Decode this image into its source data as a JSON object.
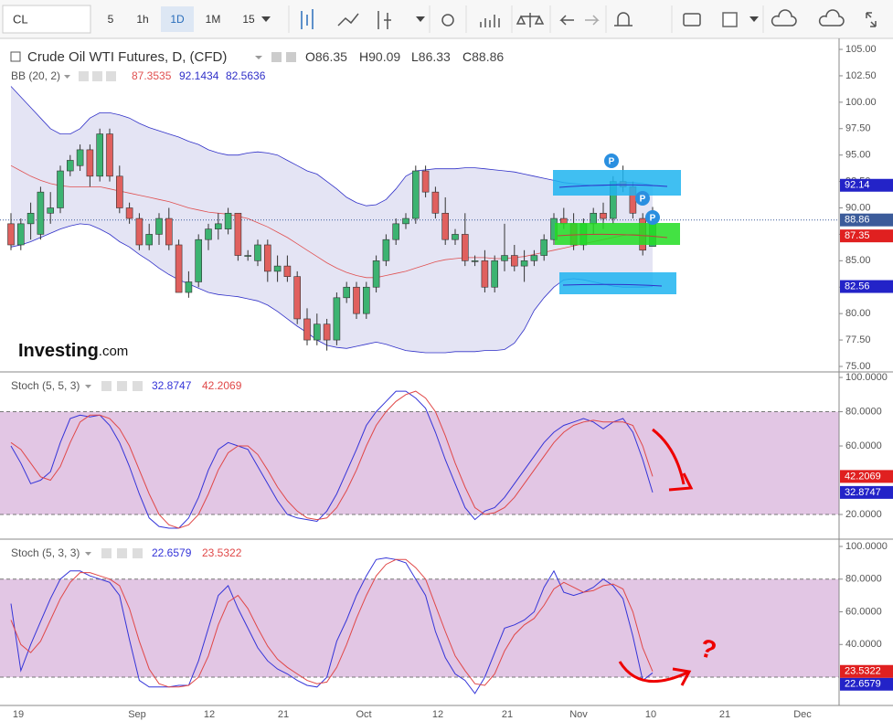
{
  "toolbar": {
    "symbol": "CL",
    "intervals": [
      "5",
      "1h",
      "1D",
      "1M",
      "15"
    ]
  },
  "chart": {
    "title": "Crude Oil WTI Futures, D, (CFD)",
    "ohlc": [
      {
        "label": "O",
        "value": 86.35
      },
      {
        "label": "H",
        "value": 90.09
      },
      {
        "label": "L",
        "value": 86.33
      },
      {
        "label": "C",
        "value": 88.86
      }
    ],
    "up_color": "#3cb371",
    "down_color": "#e0605e",
    "candles": [
      [
        88.5,
        89.5,
        86,
        86.5
      ],
      [
        86.5,
        89,
        86,
        88.5
      ],
      [
        88.5,
        90.5,
        87,
        89.5
      ],
      [
        87.5,
        92,
        87,
        91.5
      ],
      [
        89.5,
        91.5,
        88.5,
        90
      ],
      [
        90,
        94,
        89.5,
        93.5
      ],
      [
        93.5,
        95,
        93,
        94.5
      ],
      [
        94,
        96,
        93.5,
        95.5
      ],
      [
        95.5,
        96,
        92,
        93
      ],
      [
        93,
        97.5,
        92.5,
        97
      ],
      [
        97,
        97.5,
        92.5,
        93
      ],
      [
        93,
        94,
        89.5,
        90
      ],
      [
        90,
        90.5,
        88.5,
        89
      ],
      [
        89,
        89.5,
        86,
        86.5
      ],
      [
        86.5,
        88.5,
        86,
        87.5
      ],
      [
        87.5,
        89.5,
        86.5,
        89
      ],
      [
        89,
        90,
        86,
        86.5
      ],
      [
        86.5,
        87,
        82,
        82
      ],
      [
        82,
        84,
        81.5,
        83
      ],
      [
        83,
        87.5,
        82.5,
        87
      ],
      [
        87,
        88.5,
        86,
        88
      ],
      [
        88,
        89.5,
        87,
        88.5
      ],
      [
        88,
        90,
        87.5,
        89.5
      ],
      [
        89.5,
        89.5,
        85,
        85.5
      ],
      [
        85.5,
        86,
        85,
        85.5
      ],
      [
        85,
        87,
        84.5,
        86.5
      ],
      [
        86.5,
        87,
        83,
        84
      ],
      [
        84,
        85.5,
        83,
        84.5
      ],
      [
        84.5,
        85.5,
        83,
        83.5
      ],
      [
        83.5,
        84,
        79,
        79.5
      ],
      [
        79.5,
        80.5,
        77,
        77.5
      ],
      [
        77.5,
        80,
        77,
        79
      ],
      [
        79,
        79.5,
        76.5,
        77.5
      ],
      [
        77.5,
        82,
        77,
        81.5
      ],
      [
        81.5,
        83,
        81,
        82.5
      ],
      [
        82.5,
        83,
        79.5,
        80
      ],
      [
        80,
        83,
        79.5,
        82.5
      ],
      [
        82.5,
        85.5,
        82,
        85
      ],
      [
        85,
        87.5,
        84.5,
        87
      ],
      [
        87,
        89,
        86.5,
        88.5
      ],
      [
        88.5,
        89.5,
        88,
        89
      ],
      [
        89,
        94,
        88.5,
        93.5
      ],
      [
        93.5,
        94,
        91,
        91.5
      ],
      [
        91.5,
        92,
        89,
        89.5
      ],
      [
        89.5,
        91,
        86.5,
        87
      ],
      [
        87,
        88,
        86.5,
        87.5
      ],
      [
        87.5,
        89.5,
        84.5,
        85
      ],
      [
        85,
        85.5,
        84.5,
        85
      ],
      [
        85,
        86,
        82,
        82.5
      ],
      [
        82.5,
        85.5,
        82,
        85
      ],
      [
        85,
        88.5,
        84,
        85.5
      ],
      [
        85.5,
        86.5,
        84,
        84.5
      ],
      [
        84.5,
        86,
        83,
        85
      ],
      [
        85,
        86,
        84.5,
        85.5
      ],
      [
        85.5,
        87.5,
        85,
        87
      ],
      [
        87,
        89.5,
        86.5,
        89
      ],
      [
        89,
        90,
        88,
        88.5
      ],
      [
        88.5,
        89.5,
        86,
        86.5
      ],
      [
        86.5,
        89,
        86,
        88.5
      ],
      [
        88.5,
        90,
        87.5,
        89.5
      ],
      [
        89.5,
        90.5,
        88,
        89
      ],
      [
        89,
        93,
        88.5,
        92.5
      ],
      [
        92.5,
        94,
        91.5,
        92
      ],
      [
        92,
        92.5,
        89,
        89.5
      ],
      [
        89,
        89.5,
        85.5,
        86
      ],
      [
        86.35,
        90.09,
        86.33,
        88.86
      ]
    ],
    "bb": {
      "name": "BB (20, 2)",
      "legend": [
        87.3535,
        92.1434,
        82.5636
      ],
      "basis_color": "#e05050",
      "band_color": "#3030c8",
      "basis": [
        94,
        93.5,
        93,
        92.6,
        92.3,
        92.1,
        92,
        92,
        92,
        92,
        91.8,
        91.6,
        91.4,
        91.2,
        91,
        90.8,
        90.6,
        90.3,
        90,
        89.8,
        89.6,
        89.5,
        89.4,
        89.2,
        89,
        88.6,
        88.2,
        87.7,
        87.2,
        86.6,
        86,
        85.4,
        84.8,
        84.3,
        83.9,
        83.6,
        83.4,
        83.4,
        83.6,
        83.8,
        84,
        84.3,
        84.6,
        84.9,
        85.1,
        85.2,
        85.3,
        85.3,
        85.3,
        85.2,
        85.2,
        85.3,
        85.4,
        85.6,
        85.8,
        86,
        86.2,
        86.4,
        86.6,
        86.8,
        87,
        87.2,
        87.4,
        87.5,
        87.5,
        87.35
      ],
      "upper": [
        101.5,
        100.5,
        99.5,
        98.5,
        97.5,
        97,
        97,
        97.5,
        98.5,
        99,
        99,
        98.8,
        98.5,
        98,
        97.6,
        97.3,
        97,
        96.7,
        96.3,
        96,
        95.5,
        95.2,
        95,
        95,
        95.2,
        95.3,
        95.2,
        95,
        94.5,
        94,
        93.5,
        93.2,
        92.5,
        91.8,
        91,
        90.5,
        90.2,
        90.3,
        90.8,
        91.8,
        93,
        93.5,
        93.6,
        93.7,
        93.7,
        93.7,
        93.8,
        93.8,
        93.7,
        93.6,
        93.5,
        93.4,
        93.2,
        93,
        92.8,
        92.6,
        92.4,
        92.3,
        92.2,
        92.1,
        92.1,
        92.2,
        92.4,
        92.4,
        92.3,
        92.14
      ],
      "lower": [
        86.3,
        86.5,
        86.8,
        87.2,
        87.6,
        88,
        88.3,
        88.5,
        88.4,
        88,
        87.5,
        86.8,
        86.3,
        85.6,
        85,
        84.3,
        83.7,
        83.2,
        82.8,
        82.4,
        82,
        81.8,
        81.7,
        81.6,
        81.4,
        81.2,
        80.8,
        80.2,
        79.5,
        78.8,
        78.2,
        77.5,
        77,
        76.8,
        76.7,
        76.9,
        77.1,
        77.3,
        77.1,
        76.8,
        76.5,
        76.4,
        76.3,
        76.3,
        76.3,
        76.4,
        76.4,
        76.4,
        76.5,
        76.5,
        76.6,
        77.2,
        78.5,
        80.3,
        81.5,
        82.5,
        83.2,
        83.3,
        83.2,
        83,
        82.8,
        82.6,
        82.5,
        82.5,
        82.5,
        82.56
      ]
    },
    "badges": [
      92.14,
      87.35,
      82.56
    ],
    "ylim": [
      74.48,
      106.04
    ],
    "yticks": [
      {
        "value": 105,
        "label": "105.00"
      },
      {
        "value": 102.5,
        "label": "102.50"
      },
      {
        "value": 100,
        "label": "100.00"
      },
      {
        "value": 97.5,
        "label": "97.50"
      },
      {
        "value": 95,
        "label": "95.00"
      },
      {
        "value": 92.5,
        "label": "92.50"
      },
      {
        "value": 90,
        "label": "90.00"
      },
      {
        "value": 87.5,
        "label": "87.50"
      },
      {
        "value": 85,
        "label": "85.00"
      },
      {
        "value": 82.5,
        "label": "82.50"
      },
      {
        "value": 80,
        "label": "80.00"
      },
      {
        "value": 77.5,
        "label": "77.50"
      },
      {
        "value": 75,
        "label": "75.00"
      }
    ]
  },
  "stoch": [
    {
      "name": "Stoch (5, 5, 3)",
      "legend": [
        32.8747,
        42.2069
      ],
      "k_color": "#3434d8",
      "d_color": "#e04848",
      "ylim": [
        5.6,
        102.7
      ],
      "bands": [
        20,
        80
      ],
      "yticks": [
        {
          "value": 100,
          "label": "100.0000"
        },
        {
          "value": 80,
          "label": "80.0000"
        },
        {
          "value": 60,
          "label": "60.0000"
        },
        {
          "value": 20,
          "label": "20.0000"
        }
      ],
      "k": [
        60,
        50,
        38,
        40,
        45,
        62,
        76,
        78,
        77,
        78,
        72,
        62,
        48,
        32,
        18,
        13,
        12,
        12,
        18,
        30,
        46,
        58,
        62,
        60,
        58,
        48,
        38,
        28,
        20,
        18,
        17,
        16,
        22,
        32,
        45,
        58,
        72,
        80,
        86,
        92,
        92,
        88,
        82,
        68,
        52,
        38,
        24,
        17,
        22,
        24,
        30,
        38,
        46,
        54,
        62,
        68,
        72,
        74,
        76,
        74,
        70,
        74,
        76,
        68,
        52,
        32.8747
      ],
      "d": [
        62,
        58,
        50,
        42,
        40,
        48,
        62,
        74,
        78,
        78,
        76,
        70,
        60,
        46,
        32,
        20,
        14,
        12,
        14,
        20,
        32,
        46,
        56,
        60,
        60,
        55,
        46,
        36,
        28,
        22,
        18,
        17,
        18,
        24,
        34,
        46,
        60,
        72,
        80,
        86,
        90,
        92,
        88,
        80,
        66,
        50,
        36,
        24,
        20,
        21,
        24,
        30,
        38,
        46,
        54,
        62,
        68,
        72,
        74,
        75,
        74,
        74,
        74,
        72,
        60,
        42.2069
      ]
    },
    {
      "name": "Stoch (5, 3, 3)",
      "legend": [
        22.6579,
        23.5322
      ],
      "k_color": "#3434d8",
      "d_color": "#e04848",
      "ylim": [
        2.7,
        103.9
      ],
      "bands": [
        20,
        80
      ],
      "yticks": [
        {
          "value": 100,
          "label": "100.0000"
        },
        {
          "value": 80,
          "label": "80.0000"
        },
        {
          "value": 60,
          "label": "60.0000"
        },
        {
          "value": 40,
          "label": "40.0000"
        }
      ],
      "k": [
        65,
        24,
        40,
        54,
        68,
        80,
        85,
        85,
        82,
        80,
        78,
        70,
        43,
        18,
        14,
        14,
        14,
        15,
        15,
        30,
        50,
        70,
        76,
        62,
        50,
        38,
        30,
        25,
        22,
        18,
        15,
        14,
        20,
        42,
        55,
        70,
        82,
        92,
        93,
        92,
        90,
        80,
        70,
        48,
        32,
        22,
        18,
        10,
        20,
        35,
        50,
        52,
        55,
        60,
        75,
        85,
        72,
        70,
        72,
        75,
        80,
        76,
        68,
        45,
        18,
        22.6579
      ],
      "d": [
        55,
        40,
        35,
        42,
        55,
        68,
        78,
        84,
        84,
        82,
        80,
        76,
        62,
        42,
        25,
        16,
        14,
        14,
        15,
        20,
        33,
        52,
        66,
        70,
        62,
        50,
        39,
        31,
        26,
        22,
        18,
        16,
        17,
        26,
        40,
        56,
        70,
        82,
        89,
        92,
        92,
        87,
        80,
        64,
        48,
        33,
        24,
        16,
        15,
        22,
        36,
        46,
        52,
        56,
        64,
        74,
        78,
        75,
        72,
        73,
        76,
        77,
        74,
        60,
        38,
        23.5322
      ]
    }
  ],
  "x_labels": [
    "19",
    "Sep",
    "12",
    "21",
    "Oct",
    "12",
    "21",
    "Nov",
    "10",
    "21",
    "Dec"
  ],
  "annotations": {
    "markers": [
      "P",
      "P",
      "P"
    ],
    "question": "?"
  },
  "logo": {
    "brand": "Investing",
    "suffix": ".com"
  }
}
